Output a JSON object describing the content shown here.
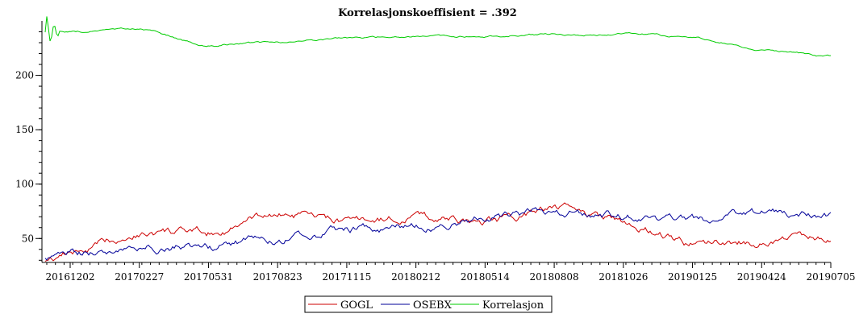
{
  "chart_data": {
    "type": "line",
    "title": "Korrelasjonskoeffisient =  .392",
    "xlabel": "",
    "ylabel": "",
    "x_tick_labels": [
      "20161202",
      "20170227",
      "20170531",
      "20170823",
      "20171115",
      "20180212",
      "20180514",
      "20180808",
      "20181026",
      "20190125",
      "20190424",
      "20190705"
    ],
    "y_ticks": [
      50,
      100,
      150,
      200
    ],
    "ylim": [
      28,
      250
    ],
    "grid": false,
    "legend_position": "bottom-center",
    "x": [
      "20161025",
      "20161202",
      "20170227",
      "20170531",
      "20170823",
      "20171115",
      "20180212",
      "20180514",
      "20180808",
      "20181026",
      "20190125",
      "20190424",
      "20190705"
    ],
    "series": [
      {
        "name": "GOGL",
        "color": "#cc0000",
        "values": [
          30,
          37,
          55,
          55,
          72,
          65,
          70,
          65,
          78,
          65,
          45,
          48,
          53
        ]
      },
      {
        "name": "OSEBX",
        "color": "#000099",
        "values": [
          30,
          36,
          42,
          42,
          50,
          58,
          60,
          68,
          75,
          70,
          66,
          72,
          72
        ]
      },
      {
        "name": "Korrelasjon",
        "color": "#00cc00",
        "values": [
          240,
          240,
          242,
          228,
          230,
          234,
          236,
          236,
          238,
          238,
          235,
          224,
          218
        ]
      }
    ]
  }
}
